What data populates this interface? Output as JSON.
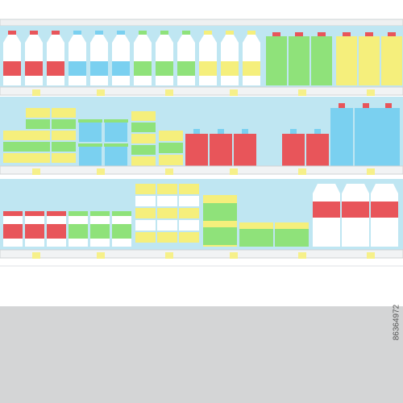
{
  "watermark": {
    "id": "86364972"
  }
}
